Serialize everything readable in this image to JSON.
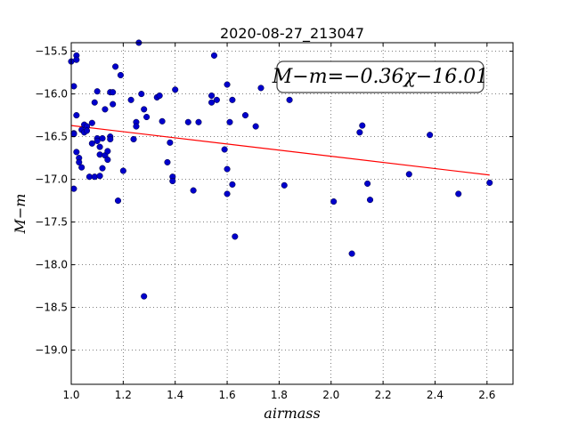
{
  "chart_data": {
    "type": "scatter",
    "title": "2020-08-27_213047",
    "xlabel": "airmass",
    "ylabel": "M−m",
    "xlim": [
      1.0,
      2.7
    ],
    "ylim": [
      -19.4,
      -15.4
    ],
    "xticks": [
      "1.0",
      "1.2",
      "1.4",
      "1.6",
      "1.8",
      "2.0",
      "2.2",
      "2.4",
      "2.6"
    ],
    "yticks": [
      "−15.5",
      "−16.0",
      "−16.5",
      "−17.0",
      "−17.5",
      "−18.0",
      "−18.5",
      "−19.0"
    ],
    "grid": true,
    "annotation": "M−m=−0.36χ−16.01",
    "colors": {
      "points": "#0000cc",
      "fit_line": "#ff0000"
    },
    "fit_line": {
      "slope": -0.36,
      "intercept": -16.01,
      "x_range": [
        1.0,
        2.61
      ]
    },
    "points": [
      [
        1.0,
        -15.62
      ],
      [
        1.01,
        -15.91
      ],
      [
        1.01,
        -16.46
      ],
      [
        1.01,
        -16.47
      ],
      [
        1.01,
        -17.11
      ],
      [
        1.02,
        -15.55
      ],
      [
        1.02,
        -15.6
      ],
      [
        1.02,
        -16.25
      ],
      [
        1.02,
        -16.68
      ],
      [
        1.03,
        -16.75
      ],
      [
        1.03,
        -16.8
      ],
      [
        1.04,
        -16.42
      ],
      [
        1.04,
        -16.86
      ],
      [
        1.05,
        -16.45
      ],
      [
        1.05,
        -16.36
      ],
      [
        1.06,
        -16.38
      ],
      [
        1.06,
        -16.43
      ],
      [
        1.07,
        -16.97
      ],
      [
        1.08,
        -16.58
      ],
      [
        1.08,
        -16.34
      ],
      [
        1.09,
        -16.1
      ],
      [
        1.09,
        -16.97
      ],
      [
        1.1,
        -15.97
      ],
      [
        1.1,
        -16.52
      ],
      [
        1.1,
        -16.55
      ],
      [
        1.11,
        -16.62
      ],
      [
        1.11,
        -16.96
      ],
      [
        1.11,
        -16.71
      ],
      [
        1.12,
        -16.52
      ],
      [
        1.12,
        -16.87
      ],
      [
        1.13,
        -16.18
      ],
      [
        1.13,
        -16.72
      ],
      [
        1.14,
        -16.77
      ],
      [
        1.14,
        -16.67
      ],
      [
        1.15,
        -15.98
      ],
      [
        1.15,
        -16.5
      ],
      [
        1.15,
        -16.53
      ],
      [
        1.16,
        -16.12
      ],
      [
        1.16,
        -15.98
      ],
      [
        1.17,
        -15.68
      ],
      [
        1.18,
        -17.25
      ],
      [
        1.19,
        -15.78
      ],
      [
        1.2,
        -16.9
      ],
      [
        1.23,
        -16.07
      ],
      [
        1.24,
        -16.53
      ],
      [
        1.25,
        -16.33
      ],
      [
        1.25,
        -16.38
      ],
      [
        1.26,
        -15.37
      ],
      [
        1.27,
        -16.0
      ],
      [
        1.28,
        -16.18
      ],
      [
        1.28,
        -18.37
      ],
      [
        1.29,
        -16.27
      ],
      [
        1.33,
        -16.04
      ],
      [
        1.34,
        -16.02
      ],
      [
        1.35,
        -16.32
      ],
      [
        1.37,
        -16.8
      ],
      [
        1.38,
        -16.57
      ],
      [
        1.39,
        -16.97
      ],
      [
        1.39,
        -17.02
      ],
      [
        1.4,
        -15.95
      ],
      [
        1.45,
        -16.33
      ],
      [
        1.47,
        -17.13
      ],
      [
        1.49,
        -16.33
      ],
      [
        1.54,
        -16.02
      ],
      [
        1.54,
        -16.1
      ],
      [
        1.55,
        -15.55
      ],
      [
        1.56,
        -16.07
      ],
      [
        1.59,
        -16.65
      ],
      [
        1.6,
        -17.17
      ],
      [
        1.6,
        -16.88
      ],
      [
        1.6,
        -15.89
      ],
      [
        1.61,
        -16.33
      ],
      [
        1.62,
        -16.07
      ],
      [
        1.62,
        -17.06
      ],
      [
        1.63,
        -17.67
      ],
      [
        1.67,
        -16.25
      ],
      [
        1.71,
        -16.38
      ],
      [
        1.73,
        -15.93
      ],
      [
        1.82,
        -17.07
      ],
      [
        1.84,
        -16.07
      ],
      [
        2.01,
        -17.26
      ],
      [
        2.08,
        -17.87
      ],
      [
        2.11,
        -16.45
      ],
      [
        2.12,
        -16.37
      ],
      [
        2.14,
        -17.05
      ],
      [
        2.15,
        -17.24
      ],
      [
        2.3,
        -16.94
      ],
      [
        2.38,
        -16.48
      ],
      [
        2.49,
        -17.17
      ],
      [
        2.61,
        -17.04
      ]
    ]
  }
}
